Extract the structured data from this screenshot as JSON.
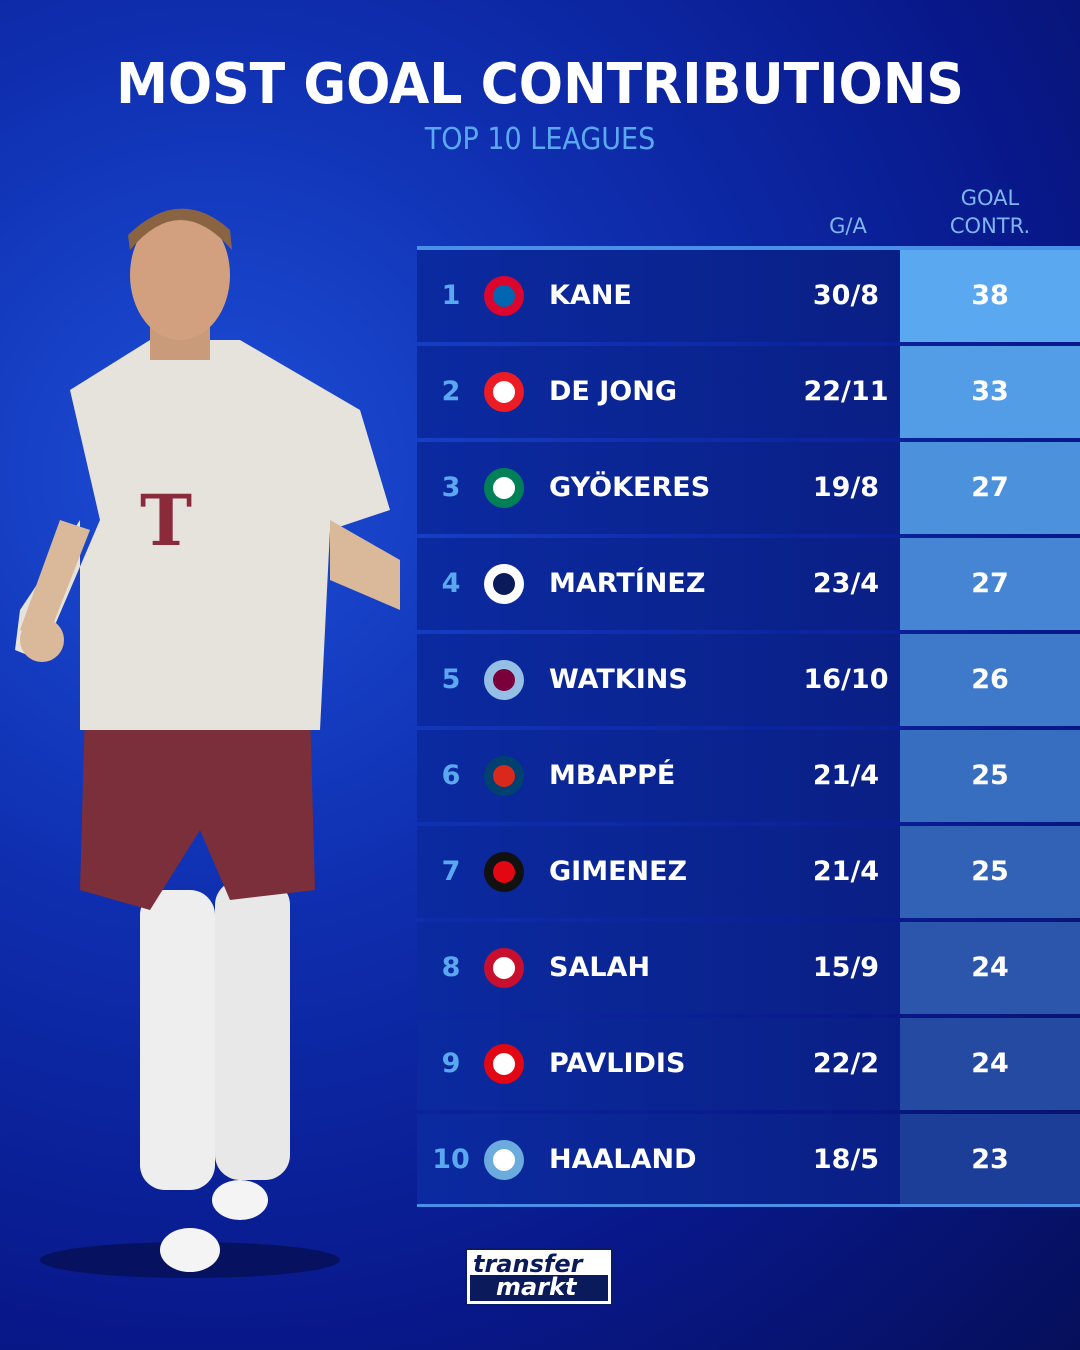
{
  "header": {
    "title": "MOST GOAL CONTRIBUTIONS",
    "subtitle": "TOP 10 LEAGUES"
  },
  "columns": {
    "ga": "G/A",
    "goal_contr_line1": "GOAL",
    "goal_contr_line2": "CONTR."
  },
  "rows": [
    {
      "rank": "1",
      "club_icon": "bayern-munich-crest",
      "name": "KANE",
      "ga": "30/8",
      "contr": "38"
    },
    {
      "rank": "2",
      "club_icon": "psv-crest",
      "name": "DE JONG",
      "ga": "22/11",
      "contr": "33"
    },
    {
      "rank": "3",
      "club_icon": "sporting-cp-crest",
      "name": "GYÖKERES",
      "ga": "19/8",
      "contr": "27"
    },
    {
      "rank": "4",
      "club_icon": "inter-milan-crest",
      "name": "MARTÍNEZ",
      "ga": "23/4",
      "contr": "27"
    },
    {
      "rank": "5",
      "club_icon": "aston-villa-crest",
      "name": "WATKINS",
      "ga": "16/10",
      "contr": "26"
    },
    {
      "rank": "6",
      "club_icon": "psg-crest",
      "name": "MBAPPÉ",
      "ga": "21/4",
      "contr": "25"
    },
    {
      "rank": "7",
      "club_icon": "feyenoord-crest",
      "name": "GIMENEZ",
      "ga": "21/4",
      "contr": "25"
    },
    {
      "rank": "8",
      "club_icon": "liverpool-crest",
      "name": "SALAH",
      "ga": "15/9",
      "contr": "24"
    },
    {
      "rank": "9",
      "club_icon": "az-alkmaar-crest",
      "name": "PAVLIDIS",
      "ga": "22/2",
      "contr": "24"
    },
    {
      "rank": "10",
      "club_icon": "manchester-city-crest",
      "name": "HAALAND",
      "ga": "18/5",
      "contr": "23"
    }
  ],
  "colors": {
    "accent": "#5aa9f0",
    "score_top": "#5aa9f0",
    "score_bottom": "#1d3e98",
    "row_bg": "#0b2aa0"
  },
  "brand": {
    "line1": "transfer",
    "line2": "markt"
  }
}
